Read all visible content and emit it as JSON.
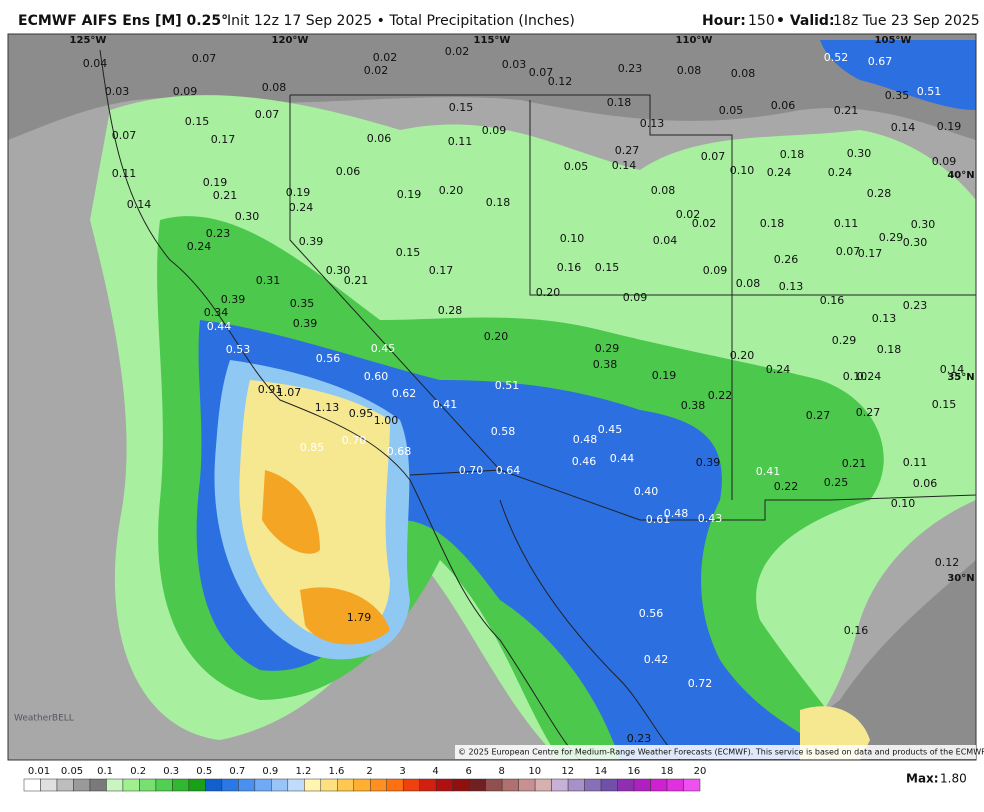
{
  "header": {
    "title": "ECMWF AIFS Ens [M] 0.25°",
    "subtitle": "Init 12z 17 Sep 2025 • Total Precipitation (Inches)",
    "hour_label": "Hour:",
    "hour": "150",
    "valid_label": "• Valid:",
    "valid": "18z Tue 23 Sep 2025"
  },
  "graticule": [
    "125°W",
    "120°W",
    "115°W",
    "110°W",
    "105°W",
    "40°N",
    "35°N",
    "30°N"
  ],
  "map_labels": [
    "0.04",
    "0.07",
    "0.02",
    "0.02",
    "0.02",
    "0.03",
    "0.07",
    "0.12",
    "0.23",
    "0.08",
    "0.08",
    "0.52",
    "0.67",
    "0.03",
    "0.09",
    "0.08",
    "0.07",
    "0.18",
    "0.05",
    "0.06",
    "0.21",
    "0.35",
    "0.51",
    "0.15",
    "0.15",
    "0.09",
    "0.13",
    "0.14",
    "0.19",
    "0.07",
    "0.17",
    "0.06",
    "0.11",
    "0.27",
    "0.14",
    "0.07",
    "0.18",
    "0.30",
    "0.09",
    "0.11",
    "0.06",
    "0.05",
    "0.10",
    "0.24",
    "0.24",
    "0.19",
    "0.21",
    "0.19",
    "0.19",
    "0.20",
    "0.08",
    "0.28",
    "0.14",
    "0.24",
    "0.18",
    "0.02",
    "0.02",
    "0.30",
    "0.18",
    "0.11",
    "0.30",
    "0.23",
    "0.39",
    "0.10",
    "0.04",
    "0.29",
    "0.30",
    "0.24",
    "0.15",
    "0.07",
    "0.17",
    "0.30",
    "0.17",
    "0.16",
    "0.15",
    "0.09",
    "0.26",
    "0.31",
    "0.21",
    "0.08",
    "0.13",
    "0.20",
    "0.09",
    "0.16",
    "0.23",
    "0.39",
    "0.35",
    "0.34",
    "0.28",
    "0.13",
    "0.44",
    "0.39",
    "0.20",
    "0.29",
    "0.29",
    "0.53",
    "0.45",
    "0.38",
    "0.20",
    "0.18",
    "0.56",
    "0.24",
    "0.19",
    "0.10",
    "0.24",
    "0.14",
    "0.60",
    "0.51",
    "0.91",
    "1.07",
    "0.62",
    "0.22",
    "0.15",
    "1.13",
    "0.95",
    "0.41",
    "0.38",
    "0.27",
    "0.27",
    "1.00",
    "0.58",
    "0.45",
    "0.48",
    "0.85",
    "0.70",
    "0.68",
    "0.46",
    "0.44",
    "0.39",
    "0.21",
    "0.11",
    "0.70",
    "0.64",
    "0.41",
    "0.25",
    "0.06",
    "0.40",
    "0.22",
    "0.10",
    "0.61",
    "0.48",
    "0.43",
    "0.12",
    "1.79",
    "0.56",
    "0.16",
    "0.42",
    "0.72",
    "0.23"
  ],
  "watermark": "WeatherBELL",
  "copyright": "© 2025 European Centre for Medium-Range Weather Forecasts (ECMWF). This service is based on data and products of the ECMWF.",
  "colorbar": {
    "labels": [
      "0.01",
      "0.05",
      "0.1",
      "0.2",
      "0.3",
      "0.5",
      "0.7",
      "0.9",
      "1.2",
      "1.6",
      "2",
      "3",
      "4",
      "6",
      "8",
      "10",
      "12",
      "14",
      "16",
      "18",
      "20"
    ]
  },
  "max_label": "Max:",
  "max_value": "1.80"
}
